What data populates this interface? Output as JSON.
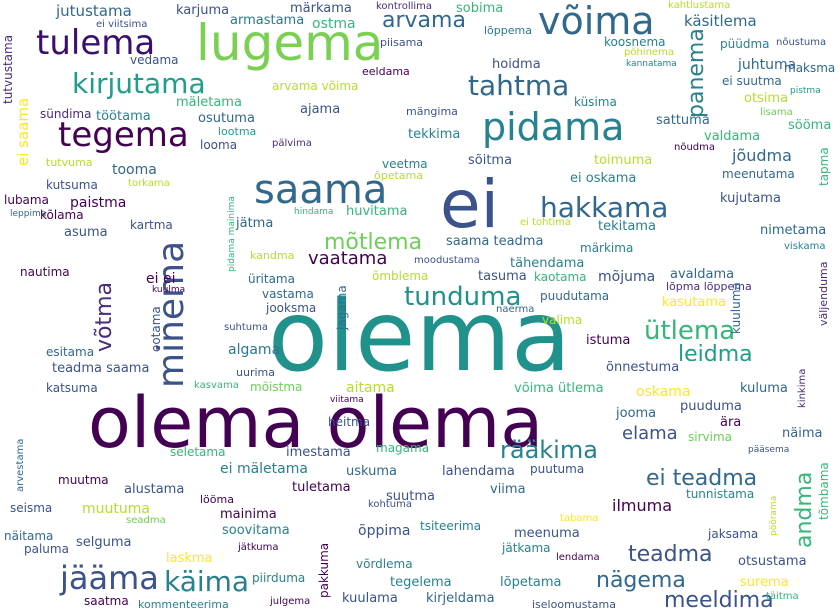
{
  "words": [
    {
      "id": "w0",
      "text": "olema",
      "color": "#21918c"
    },
    {
      "id": "w1",
      "text": "olema olema",
      "color": "#440154"
    },
    {
      "id": "w2",
      "text": "ei",
      "color": "#3b528b"
    },
    {
      "id": "w3",
      "text": "lugema",
      "color": "#7ad151"
    },
    {
      "id": "w4",
      "text": "võima",
      "color": "#31688e"
    },
    {
      "id": "w5",
      "text": "pidama",
      "color": "#26828e"
    },
    {
      "id": "w6",
      "text": "saama",
      "color": "#31688e"
    },
    {
      "id": "w7",
      "text": "tulema",
      "color": "#3b0f70"
    },
    {
      "id": "w8",
      "text": "tegema",
      "color": "#440154"
    },
    {
      "id": "w9",
      "text": "kirjutama",
      "color": "#1f9e89"
    },
    {
      "id": "w10",
      "text": "tahtma",
      "color": "#31688e"
    },
    {
      "id": "w11",
      "text": "hakkama",
      "color": "#31688e"
    },
    {
      "id": "w12",
      "text": "minema",
      "color": "#3b528b"
    },
    {
      "id": "w13",
      "text": "tunduma",
      "color": "#21918c"
    },
    {
      "id": "w14",
      "text": "mõtlema",
      "color": "#6ece58"
    },
    {
      "id": "w15",
      "text": "jääma",
      "color": "#3b528b"
    },
    {
      "id": "w16",
      "text": "käima",
      "color": "#26828e"
    },
    {
      "id": "w17",
      "text": "nägema",
      "color": "#31688e"
    },
    {
      "id": "w18",
      "text": "meeldima",
      "color": "#3b528b"
    },
    {
      "id": "w19",
      "text": "ütlema",
      "color": "#35b779"
    },
    {
      "id": "w20",
      "text": "leidma",
      "color": "#1f9e89"
    },
    {
      "id": "w21",
      "text": "rääkima",
      "color": "#26828e"
    },
    {
      "id": "w22",
      "text": "ei teadma",
      "color": "#31688e"
    },
    {
      "id": "w23",
      "text": "elama",
      "color": "#3b528b"
    },
    {
      "id": "w24",
      "text": "panema",
      "color": "#26828e"
    },
    {
      "id": "w25",
      "text": "võtma",
      "color": "#472d7b"
    },
    {
      "id": "w26",
      "text": "vaatama",
      "color": "#440154"
    },
    {
      "id": "w27",
      "text": "teadma",
      "color": "#3b528b"
    },
    {
      "id": "w28",
      "text": "andma",
      "color": "#35b779"
    },
    {
      "id": "w29",
      "text": "arvama",
      "color": "#31688e"
    },
    {
      "id": "w30",
      "text": "jutustama",
      "color": "#31688e"
    },
    {
      "id": "w31",
      "text": "karjuma",
      "color": "#3b528b"
    },
    {
      "id": "w32",
      "text": "armastama",
      "color": "#2a788e"
    },
    {
      "id": "w33",
      "text": "märkama",
      "color": "#3b528b"
    },
    {
      "id": "w34",
      "text": "ostma",
      "color": "#35b779"
    },
    {
      "id": "w35",
      "text": "kontrollima",
      "color": "#472d7b"
    },
    {
      "id": "w36",
      "text": "sobima",
      "color": "#35b779"
    },
    {
      "id": "w37",
      "text": "kahtlustama",
      "color": "#b5de2b"
    },
    {
      "id": "w38",
      "text": "ei viitsima",
      "color": "#3b528b"
    },
    {
      "id": "w39",
      "text": "piisama",
      "color": "#3b528b"
    },
    {
      "id": "w40",
      "text": "lõppema",
      "color": "#2a788e"
    },
    {
      "id": "w41",
      "text": "käsitlema",
      "color": "#31688e"
    },
    {
      "id": "w42",
      "text": "koosnema",
      "color": "#26828e"
    },
    {
      "id": "w43",
      "text": "põhinema",
      "color": "#b5de2b"
    },
    {
      "id": "w44",
      "text": "püüdma",
      "color": "#26828e"
    },
    {
      "id": "w45",
      "text": "nõustuma",
      "color": "#3b528b"
    },
    {
      "id": "w46",
      "text": "tutvustama",
      "color": "#472d7b"
    },
    {
      "id": "w47",
      "text": "vedama",
      "color": "#3b528b"
    },
    {
      "id": "w48",
      "text": "eeldama",
      "color": "#440154"
    },
    {
      "id": "w49",
      "text": "kannatama",
      "color": "#26828e"
    },
    {
      "id": "w50",
      "text": "juhtuma",
      "color": "#31688e"
    },
    {
      "id": "w51",
      "text": "maksma",
      "color": "#31688e"
    },
    {
      "id": "w52",
      "text": "ei saama",
      "color": "#fde725"
    },
    {
      "id": "w53",
      "text": "arvama võima",
      "color": "#b5de2b"
    },
    {
      "id": "w54",
      "text": "hoidma",
      "color": "#3b528b"
    },
    {
      "id": "w55",
      "text": "ei suutma",
      "color": "#31688e"
    },
    {
      "id": "w56",
      "text": "pistma",
      "color": "#1f9e89"
    },
    {
      "id": "w57",
      "text": "sündima",
      "color": "#472d7b"
    },
    {
      "id": "w58",
      "text": "mäletama",
      "color": "#35b779"
    },
    {
      "id": "w59",
      "text": "otsima",
      "color": "#b5de2b"
    },
    {
      "id": "w60",
      "text": "küsima",
      "color": "#26828e"
    },
    {
      "id": "w61",
      "text": "lisama",
      "color": "#6ece58"
    },
    {
      "id": "w62",
      "text": "töötama",
      "color": "#26828e"
    },
    {
      "id": "w63",
      "text": "osutuma",
      "color": "#31688e"
    },
    {
      "id": "w64",
      "text": "ajama",
      "color": "#3b528b"
    },
    {
      "id": "w65",
      "text": "mängima",
      "color": "#3b528b"
    },
    {
      "id": "w66",
      "text": "sattuma",
      "color": "#31688e"
    },
    {
      "id": "w67",
      "text": "sööma",
      "color": "#35b779"
    },
    {
      "id": "w68",
      "text": "lootma",
      "color": "#1f9e89"
    },
    {
      "id": "w69",
      "text": "tekkima",
      "color": "#26828e"
    },
    {
      "id": "w70",
      "text": "valdama",
      "color": "#35b779"
    },
    {
      "id": "w71",
      "text": "looma",
      "color": "#3b528b"
    },
    {
      "id": "w72",
      "text": "pälvima",
      "color": "#472d7b"
    },
    {
      "id": "w73",
      "text": "nõudma",
      "color": "#440154"
    },
    {
      "id": "w74",
      "text": "jõudma",
      "color": "#31688e"
    },
    {
      "id": "w75",
      "text": "tapma",
      "color": "#35b779"
    },
    {
      "id": "w76",
      "text": "veetma",
      "color": "#26828e"
    },
    {
      "id": "w77",
      "text": "sõitma",
      "color": "#3b528b"
    },
    {
      "id": "w78",
      "text": "toimuma",
      "color": "#b5de2b"
    },
    {
      "id": "w79",
      "text": "õpetama",
      "color": "#b5de2b"
    },
    {
      "id": "w80",
      "text": "meenutama",
      "color": "#31688e"
    },
    {
      "id": "w81",
      "text": "tutvuma",
      "color": "#b5de2b"
    },
    {
      "id": "w82",
      "text": "tooma",
      "color": "#31688e"
    },
    {
      "id": "w83",
      "text": "ei oskama",
      "color": "#26828e"
    },
    {
      "id": "w84",
      "text": "kutsuma",
      "color": "#3b528b"
    },
    {
      "id": "w85",
      "text": "torkama",
      "color": "#b5de2b"
    },
    {
      "id": "w86",
      "text": "kujutama",
      "color": "#3b528b"
    },
    {
      "id": "w87",
      "text": "lubama",
      "color": "#440154"
    },
    {
      "id": "w88",
      "text": "paistma",
      "color": "#440154"
    },
    {
      "id": "w89",
      "text": "leppima",
      "color": "#31688e"
    },
    {
      "id": "w90",
      "text": "hindama",
      "color": "#35b779"
    },
    {
      "id": "w91",
      "text": "huvitama",
      "color": "#35b779"
    },
    {
      "id": "w92",
      "text": "kõlama",
      "color": "#440154"
    },
    {
      "id": "w93",
      "text": "asuma",
      "color": "#3b528b"
    },
    {
      "id": "w94",
      "text": "jätma",
      "color": "#31688e"
    },
    {
      "id": "w95",
      "text": "ei tohtima",
      "color": "#b5de2b"
    },
    {
      "id": "w96",
      "text": "tekitama",
      "color": "#26828e"
    },
    {
      "id": "w97",
      "text": "kartma",
      "color": "#3b528b"
    },
    {
      "id": "w98",
      "text": "nimetama",
      "color": "#31688e"
    },
    {
      "id": "w99",
      "text": "saama teadma",
      "color": "#31688e"
    },
    {
      "id": "w100",
      "text": "märkima",
      "color": "#26828e"
    },
    {
      "id": "w101",
      "text": "viskama",
      "color": "#26828e"
    },
    {
      "id": "w102",
      "text": "kandma",
      "color": "#b5de2b"
    },
    {
      "id": "w103",
      "text": "moodustama",
      "color": "#3b528b"
    },
    {
      "id": "w104",
      "text": "tähendama",
      "color": "#26828e"
    },
    {
      "id": "w105",
      "text": "nautima",
      "color": "#440154"
    },
    {
      "id": "w106",
      "text": "ei ei",
      "color": "#440154"
    },
    {
      "id": "w107",
      "text": "üritama",
      "color": "#31688e"
    },
    {
      "id": "w108",
      "text": "õmblema",
      "color": "#b5de2b"
    },
    {
      "id": "w109",
      "text": "tasuma",
      "color": "#3b528b"
    },
    {
      "id": "w110",
      "text": "kaotama",
      "color": "#35b779"
    },
    {
      "id": "w111",
      "text": "mõjuma",
      "color": "#3b528b"
    },
    {
      "id": "w112",
      "text": "avaldama",
      "color": "#31688e"
    },
    {
      "id": "w113",
      "text": "lõpma lõppema",
      "color": "#472d7b"
    },
    {
      "id": "w114",
      "text": "väljenduma",
      "color": "#472d7b"
    },
    {
      "id": "w115",
      "text": "kuulma",
      "color": "#440154"
    },
    {
      "id": "w116",
      "text": "vastama",
      "color": "#31688e"
    },
    {
      "id": "w117",
      "text": "puudutama",
      "color": "#31688e"
    },
    {
      "id": "w118",
      "text": "kasutama",
      "color": "#fde725"
    },
    {
      "id": "w119",
      "text": "jooksma",
      "color": "#3b528b"
    },
    {
      "id": "w120",
      "text": "naerma",
      "color": "#31688e"
    },
    {
      "id": "w121",
      "text": "kuuluma",
      "color": "#31688e"
    },
    {
      "id": "w122",
      "text": "valima",
      "color": "#b5de2b"
    },
    {
      "id": "w123",
      "text": "suhtuma",
      "color": "#3b528b"
    },
    {
      "id": "w124",
      "text": "algama",
      "color": "#2a788e"
    },
    {
      "id": "w125",
      "text": "istuma",
      "color": "#440154"
    },
    {
      "id": "w126",
      "text": "esitama",
      "color": "#31688e"
    },
    {
      "id": "w127",
      "text": "teadma saama",
      "color": "#3b528b"
    },
    {
      "id": "w128",
      "text": "uurima",
      "color": "#3b528b"
    },
    {
      "id": "w129",
      "text": "õnnestuma",
      "color": "#3b528b"
    },
    {
      "id": "w130",
      "text": "katsuma",
      "color": "#3b528b"
    },
    {
      "id": "w131",
      "text": "kasvama",
      "color": "#35b779"
    },
    {
      "id": "w132",
      "text": "mõistma",
      "color": "#6ece58"
    },
    {
      "id": "w133",
      "text": "aitama",
      "color": "#b5de2b"
    },
    {
      "id": "w134",
      "text": "võima ütlema",
      "color": "#35b779"
    },
    {
      "id": "w135",
      "text": "oskama",
      "color": "#fde725"
    },
    {
      "id": "w136",
      "text": "kuluma",
      "color": "#31688e"
    },
    {
      "id": "w137",
      "text": "kinkima",
      "color": "#472d7b"
    },
    {
      "id": "w138",
      "text": "viitama",
      "color": "#440154"
    },
    {
      "id": "w139",
      "text": "heitma",
      "color": "#3b528b"
    },
    {
      "id": "w140",
      "text": "jooma",
      "color": "#31688e"
    },
    {
      "id": "w141",
      "text": "puuduma",
      "color": "#3b528b"
    },
    {
      "id": "w142",
      "text": "ära",
      "color": "#440154"
    },
    {
      "id": "w143",
      "text": "sirvima",
      "color": "#6ece58"
    },
    {
      "id": "w144",
      "text": "näima",
      "color": "#31688e"
    },
    {
      "id": "w145",
      "text": "arvestama",
      "color": "#31688e"
    },
    {
      "id": "w146",
      "text": "seletama",
      "color": "#35b779"
    },
    {
      "id": "w147",
      "text": "imestama",
      "color": "#3b528b"
    },
    {
      "id": "w148",
      "text": "magama",
      "color": "#35b779"
    },
    {
      "id": "w149",
      "text": "pääsema",
      "color": "#3b528b"
    },
    {
      "id": "w150",
      "text": "ei mäletama",
      "color": "#26828e"
    },
    {
      "id": "w151",
      "text": "uskuma",
      "color": "#31688e"
    },
    {
      "id": "w152",
      "text": "lahendama",
      "color": "#3b528b"
    },
    {
      "id": "w153",
      "text": "puutuma",
      "color": "#3b528b"
    },
    {
      "id": "w154",
      "text": "muutma",
      "color": "#440154"
    },
    {
      "id": "w155",
      "text": "alustama",
      "color": "#3b528b"
    },
    {
      "id": "w156",
      "text": "tuletama",
      "color": "#440154"
    },
    {
      "id": "w157",
      "text": "viima",
      "color": "#31688e"
    },
    {
      "id": "w158",
      "text": "tunnistama",
      "color": "#26828e"
    },
    {
      "id": "w159",
      "text": "tõmbama",
      "color": "#35b779"
    },
    {
      "id": "w160",
      "text": "seisma",
      "color": "#3b528b"
    },
    {
      "id": "w161",
      "text": "muutuma",
      "color": "#b5de2b"
    },
    {
      "id": "w162",
      "text": "lööma",
      "color": "#440154"
    },
    {
      "id": "w163",
      "text": "kohtuma",
      "color": "#3b528b"
    },
    {
      "id": "w164",
      "text": "suutma",
      "color": "#3b528b"
    },
    {
      "id": "w165",
      "text": "ilmuma",
      "color": "#440154"
    },
    {
      "id": "w166",
      "text": "näitama",
      "color": "#31688e"
    },
    {
      "id": "w167",
      "text": "seadma",
      "color": "#6ece58"
    },
    {
      "id": "w168",
      "text": "mainima",
      "color": "#440154"
    },
    {
      "id": "w169",
      "text": "tabama",
      "color": "#fde725"
    },
    {
      "id": "w170",
      "text": "pöörama",
      "color": "#b5de2b"
    },
    {
      "id": "w171",
      "text": "paluma",
      "color": "#3b528b"
    },
    {
      "id": "w172",
      "text": "selguma",
      "color": "#3b528b"
    },
    {
      "id": "w173",
      "text": "soovitama",
      "color": "#26828e"
    },
    {
      "id": "w174",
      "text": "õppima",
      "color": "#3b528b"
    },
    {
      "id": "w175",
      "text": "tsiteerima",
      "color": "#26828e"
    },
    {
      "id": "w176",
      "text": "meenuma",
      "color": "#3b528b"
    },
    {
      "id": "w177",
      "text": "jaksama",
      "color": "#3b528b"
    },
    {
      "id": "w178",
      "text": "otsustama",
      "color": "#3b528b"
    },
    {
      "id": "w179",
      "text": "jätkuma",
      "color": "#440154"
    },
    {
      "id": "w180",
      "text": "jätkama",
      "color": "#26828e"
    },
    {
      "id": "w181",
      "text": "lendama",
      "color": "#440154"
    },
    {
      "id": "w182",
      "text": "laskma",
      "color": "#fde725"
    },
    {
      "id": "w183",
      "text": "võrdlema",
      "color": "#26828e"
    },
    {
      "id": "w184",
      "text": "surema",
      "color": "#fde725"
    },
    {
      "id": "w185",
      "text": "piirduma",
      "color": "#26828e"
    },
    {
      "id": "w186",
      "text": "pakkuma",
      "color": "#440154"
    },
    {
      "id": "w187",
      "text": "tegelema",
      "color": "#26828e"
    },
    {
      "id": "w188",
      "text": "lõpetama",
      "color": "#26828e"
    },
    {
      "id": "w189",
      "text": "saatma",
      "color": "#440154"
    },
    {
      "id": "w190",
      "text": "kommenteerima",
      "color": "#26828e"
    },
    {
      "id": "w191",
      "text": "julgema",
      "color": "#440154"
    },
    {
      "id": "w192",
      "text": "kuulama",
      "color": "#3b528b"
    },
    {
      "id": "w193",
      "text": "kirjeldama",
      "color": "#31688e"
    },
    {
      "id": "w194",
      "text": "iseloomustama",
      "color": "#3b528b"
    },
    {
      "id": "w195",
      "text": "täitma",
      "color": "#35b779"
    },
    {
      "id": "w196",
      "text": "jagama",
      "color": "#31688e"
    },
    {
      "id": "w197",
      "text": "ootama",
      "color": "#3b528b"
    },
    {
      "id": "w198",
      "text": "pidama mainima",
      "color": "#35b779"
    }
  ]
}
